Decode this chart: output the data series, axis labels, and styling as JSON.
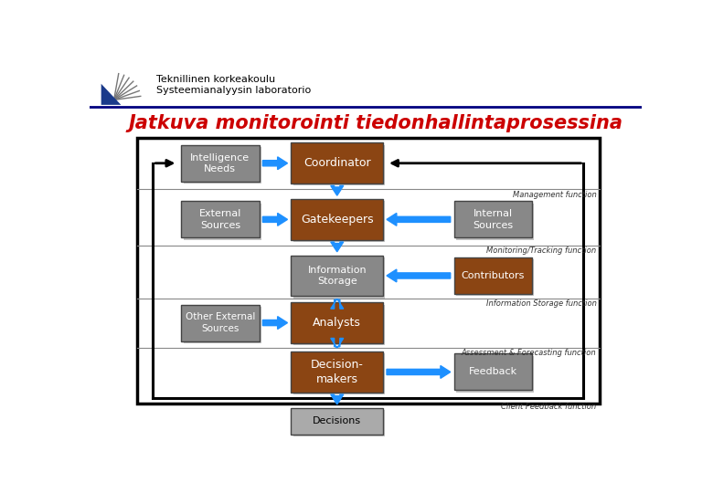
{
  "title": "Jatkuva monitorointi tiedonhallintaprosessina",
  "title_color": "#cc0000",
  "title_fontsize": 15,
  "header_line1": "Teknillinen korkeakoulu",
  "header_line2": "Systeemianalyysin laboratorio",
  "bg_color": "#ffffff",
  "box_brown": "#8B4513",
  "box_gray": "#888888",
  "box_lgray": "#aaaaaa",
  "arrow_blue": "#1E90FF",
  "arrow_black": "#000000",
  "section_labels": [
    "Management function",
    "Monitoring/Tracking function",
    "Information Storage function",
    "Assessment & Forecasting function",
    "Client Feedback function"
  ]
}
